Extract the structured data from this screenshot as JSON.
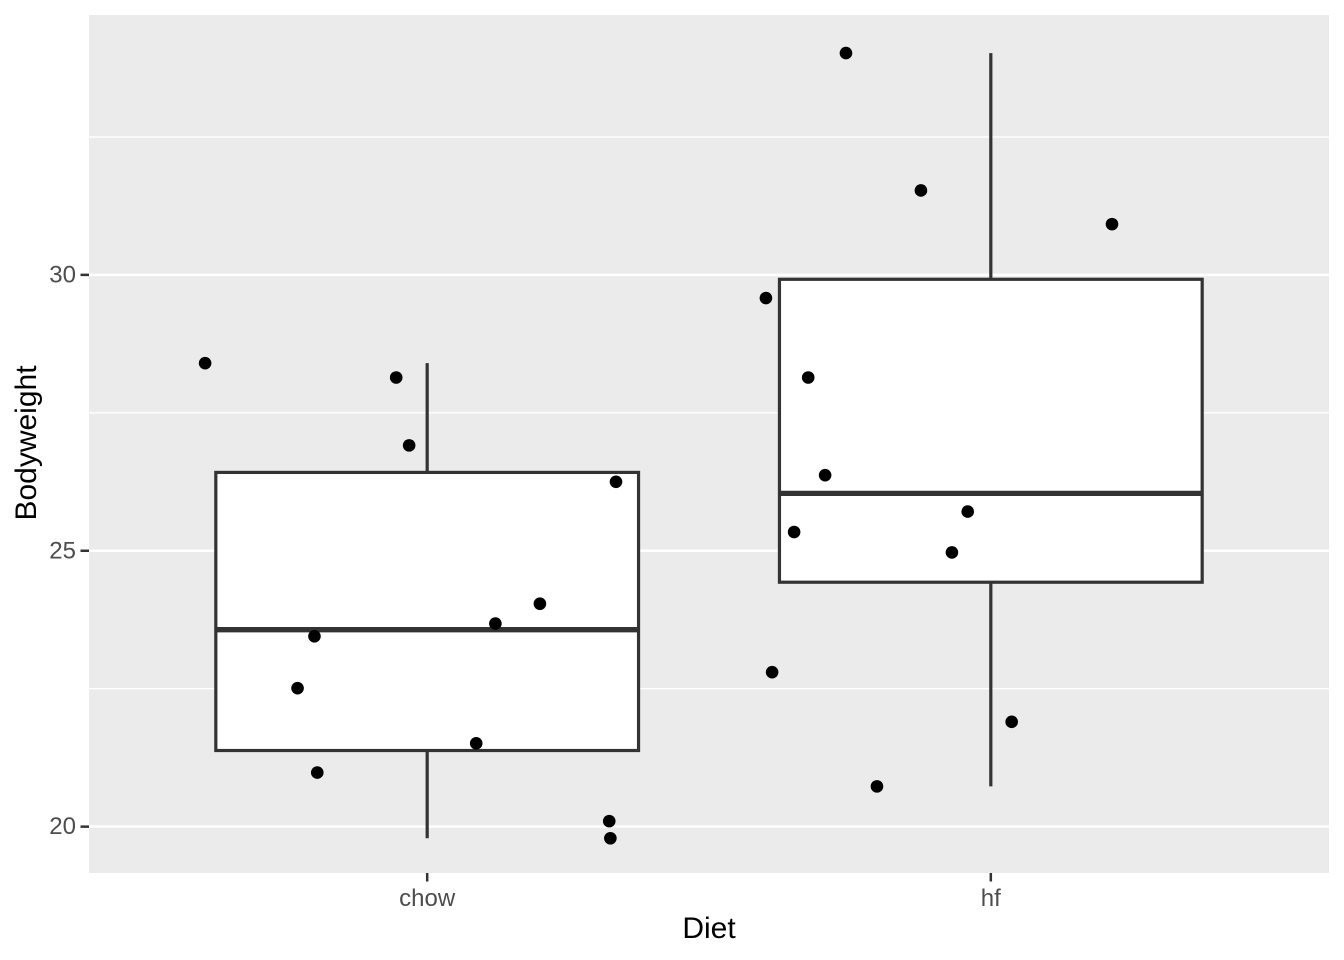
{
  "figure": {
    "background": "#FFFFFF",
    "panel_background": "#EBEBEB",
    "grid_color": "#FFFFFF",
    "box_fill": "#FFFFFF",
    "box_stroke": "#333333",
    "point_color": "#000000",
    "tick_mark_color": "#333333",
    "tick_label_color": "#4D4D4D",
    "axis_title_color": "#000000"
  },
  "chart_data": {
    "type": "boxplot",
    "subtype": "boxplot-with-jittered-points",
    "title": "",
    "xlabel": "Diet",
    "ylabel": "Bodyweight",
    "categories": [
      "chow",
      "hf"
    ],
    "category_positions": [
      1,
      2
    ],
    "xlim": [
      0.4,
      2.6
    ],
    "ylim": [
      19.16,
      34.71
    ],
    "y_major_ticks": [
      20,
      25,
      30
    ],
    "y_minor_ticks": [
      22.5,
      27.5,
      32.5
    ],
    "grid": true,
    "legend_position": "none",
    "box_width": 0.75,
    "series": [
      {
        "name": "chow",
        "position": 1,
        "box": {
          "whisker_low": 19.79,
          "q1": 21.38,
          "median": 23.57,
          "q3": 26.42,
          "whisker_high": 28.4
        },
        "points": [
          {
            "x": 0.606,
            "y": 28.4
          },
          {
            "x": 0.945,
            "y": 28.14
          },
          {
            "x": 0.968,
            "y": 26.91
          },
          {
            "x": 1.335,
            "y": 26.25
          },
          {
            "x": 1.2,
            "y": 24.04
          },
          {
            "x": 1.121,
            "y": 23.68
          },
          {
            "x": 0.8,
            "y": 23.45
          },
          {
            "x": 0.77,
            "y": 22.51
          },
          {
            "x": 1.087,
            "y": 21.51
          },
          {
            "x": 0.805,
            "y": 20.98
          },
          {
            "x": 1.323,
            "y": 20.1
          },
          {
            "x": 1.325,
            "y": 19.79
          }
        ]
      },
      {
        "name": "hf",
        "position": 2,
        "box": {
          "whisker_low": 20.73,
          "q1": 24.43,
          "median": 26.04,
          "q3": 29.92,
          "whisker_high": 34.02
        },
        "points": [
          {
            "x": 1.743,
            "y": 34.02
          },
          {
            "x": 1.876,
            "y": 31.53
          },
          {
            "x": 2.215,
            "y": 30.92
          },
          {
            "x": 1.601,
            "y": 29.58
          },
          {
            "x": 1.676,
            "y": 28.14
          },
          {
            "x": 1.706,
            "y": 26.37
          },
          {
            "x": 1.959,
            "y": 25.71
          },
          {
            "x": 1.651,
            "y": 25.34
          },
          {
            "x": 1.931,
            "y": 24.97
          },
          {
            "x": 1.612,
            "y": 22.8
          },
          {
            "x": 2.037,
            "y": 21.9
          },
          {
            "x": 1.798,
            "y": 20.73
          }
        ]
      }
    ]
  }
}
